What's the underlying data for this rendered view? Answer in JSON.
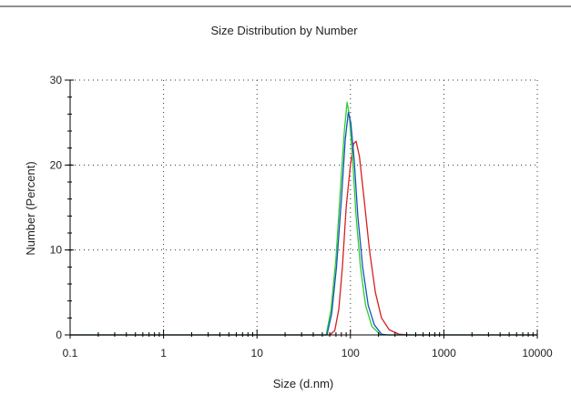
{
  "chart_data": {
    "type": "line",
    "title": "Size Distribution by Number",
    "xlabel": "Size (d.nm)",
    "ylabel": "Number (Percent)",
    "xscale": "log",
    "xlim": [
      0.1,
      10000
    ],
    "ylim": [
      0,
      30
    ],
    "x_ticks": [
      {
        "value": 0.1,
        "label": "0.1"
      },
      {
        "value": 1,
        "label": "1"
      },
      {
        "value": 10,
        "label": "10"
      },
      {
        "value": 100,
        "label": "100"
      },
      {
        "value": 1000,
        "label": "1000"
      },
      {
        "value": 10000,
        "label": "10000"
      }
    ],
    "y_ticks": [
      {
        "value": 0,
        "label": "0"
      },
      {
        "value": 10,
        "label": "10"
      },
      {
        "value": 20,
        "label": "20"
      },
      {
        "value": 30,
        "label": "30"
      }
    ],
    "grid": "dotted",
    "legend": "none",
    "series": [
      {
        "color": "#d62020",
        "points": [
          [
            0.1,
            0
          ],
          [
            60,
            0
          ],
          [
            68,
            0.5
          ],
          [
            75,
            3
          ],
          [
            82,
            8
          ],
          [
            90,
            15
          ],
          [
            100,
            20
          ],
          [
            108,
            22.5
          ],
          [
            115,
            22.8
          ],
          [
            125,
            21
          ],
          [
            140,
            16
          ],
          [
            160,
            10
          ],
          [
            185,
            5
          ],
          [
            215,
            2
          ],
          [
            260,
            0.6
          ],
          [
            330,
            0.1
          ],
          [
            420,
            0
          ],
          [
            10000,
            0
          ]
        ]
      },
      {
        "color": "#2ecc2e",
        "points": [
          [
            0.1,
            0
          ],
          [
            55,
            0
          ],
          [
            62,
            3
          ],
          [
            70,
            9
          ],
          [
            78,
            17
          ],
          [
            86,
            24
          ],
          [
            92,
            27.4
          ],
          [
            97,
            26
          ],
          [
            105,
            21
          ],
          [
            115,
            14
          ],
          [
            128,
            8
          ],
          [
            145,
            3.5
          ],
          [
            170,
            1
          ],
          [
            210,
            0
          ],
          [
            10000,
            0
          ]
        ]
      },
      {
        "color": "#1a50c0",
        "points": [
          [
            0.1,
            0
          ],
          [
            56,
            0
          ],
          [
            63,
            2.5
          ],
          [
            71,
            8
          ],
          [
            80,
            16
          ],
          [
            88,
            23
          ],
          [
            95,
            26.2
          ],
          [
            101,
            25
          ],
          [
            110,
            20.5
          ],
          [
            120,
            14
          ],
          [
            135,
            8
          ],
          [
            155,
            3.5
          ],
          [
            180,
            1.2
          ],
          [
            215,
            0.1
          ],
          [
            250,
            0
          ],
          [
            10000,
            0
          ]
        ]
      }
    ]
  }
}
